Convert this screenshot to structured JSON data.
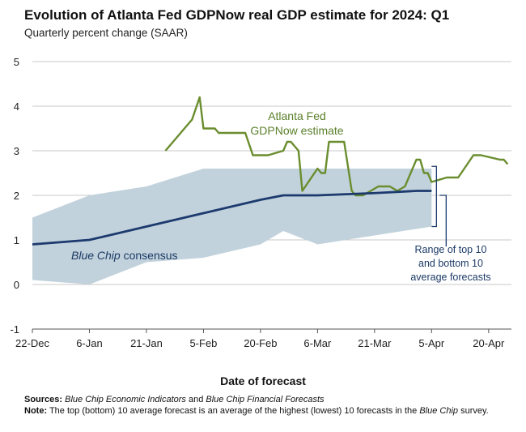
{
  "title": "Evolution of Atlanta Fed GDPNow real GDP estimate for 2024: Q1",
  "subtitle": "Quarterly percent change (SAAR)",
  "xlabel": "Date of forecast",
  "sources": {
    "label": "Sources:",
    "parts": [
      {
        "text": "Blue Chip Economic Indicators",
        "italic": true
      },
      {
        "text": " and ",
        "italic": false
      },
      {
        "text": "Blue Chip Financial Forecasts",
        "italic": true
      }
    ]
  },
  "note": {
    "label": "Note:",
    "parts": [
      {
        "text": " The top (bottom) 10 average forecast is an average of the highest (lowest) 10 forecasts in the ",
        "italic": false
      },
      {
        "text": "Blue Chip",
        "italic": true
      },
      {
        "text": " survey.",
        "italic": false
      }
    ]
  },
  "annotations": {
    "gdpnow": [
      "Atlanta Fed",
      "GDPNow estimate"
    ],
    "bluechip": [
      {
        "text": "Blue Chip",
        "italic": true
      },
      {
        "text": " consensus",
        "italic": false
      }
    ],
    "range": [
      "Range of top 10",
      "and bottom 10",
      "average forecasts"
    ]
  },
  "colors": {
    "gdpnow": "#6a8d2e",
    "bluechip": "#1c3a6e",
    "range_fill": "#c2d2dc",
    "grid": "#c9c9c9",
    "axis": "#555555"
  },
  "chart_data": {
    "type": "line",
    "x_axis": {
      "start": "2023-12-22",
      "end": "2024-04-26",
      "ticks": [
        {
          "date": "2023-12-22",
          "label": "22-Dec"
        },
        {
          "date": "2024-01-06",
          "label": "6-Jan"
        },
        {
          "date": "2024-01-21",
          "label": "21-Jan"
        },
        {
          "date": "2024-02-05",
          "label": "5-Feb"
        },
        {
          "date": "2024-02-20",
          "label": "20-Feb"
        },
        {
          "date": "2024-03-06",
          "label": "6-Mar"
        },
        {
          "date": "2024-03-21",
          "label": "21-Mar"
        },
        {
          "date": "2024-04-05",
          "label": "5-Apr"
        },
        {
          "date": "2024-04-20",
          "label": "20-Apr"
        }
      ]
    },
    "ylim": [
      -1,
      5
    ],
    "yticks": [
      -1,
      0,
      1,
      2,
      3,
      4,
      5
    ],
    "grid": true,
    "series": [
      {
        "name": "Atlanta Fed GDPNow estimate",
        "kind": "line",
        "points": [
          [
            "2024-01-26",
            3.0
          ],
          [
            "2024-01-29",
            3.3
          ],
          [
            "2024-02-01",
            3.6
          ],
          [
            "2024-02-02",
            3.7
          ],
          [
            "2024-02-04",
            4.2
          ],
          [
            "2024-02-05",
            3.5
          ],
          [
            "2024-02-07",
            3.5
          ],
          [
            "2024-02-08",
            3.5
          ],
          [
            "2024-02-09",
            3.4
          ],
          [
            "2024-02-15",
            3.4
          ],
          [
            "2024-02-16",
            3.4
          ],
          [
            "2024-02-18",
            2.9
          ],
          [
            "2024-02-22",
            2.9
          ],
          [
            "2024-02-26",
            3.0
          ],
          [
            "2024-02-27",
            3.2
          ],
          [
            "2024-02-28",
            3.2
          ],
          [
            "2024-03-01",
            3.0
          ],
          [
            "2024-03-02",
            2.1
          ],
          [
            "2024-03-06",
            2.6
          ],
          [
            "2024-03-07",
            2.5
          ],
          [
            "2024-03-08",
            2.5
          ],
          [
            "2024-03-09",
            3.2
          ],
          [
            "2024-03-12",
            3.2
          ],
          [
            "2024-03-13",
            3.2
          ],
          [
            "2024-03-15",
            2.1
          ],
          [
            "2024-03-16",
            2.0
          ],
          [
            "2024-03-18",
            2.0
          ],
          [
            "2024-03-20",
            2.1
          ],
          [
            "2024-03-22",
            2.2
          ],
          [
            "2024-03-25",
            2.2
          ],
          [
            "2024-03-27",
            2.1
          ],
          [
            "2024-03-29",
            2.2
          ],
          [
            "2024-04-01",
            2.8
          ],
          [
            "2024-04-02",
            2.8
          ],
          [
            "2024-04-03",
            2.5
          ],
          [
            "2024-04-04",
            2.5
          ],
          [
            "2024-04-05",
            2.3
          ],
          [
            "2024-04-09",
            2.4
          ],
          [
            "2024-04-12",
            2.4
          ],
          [
            "2024-04-16",
            2.9
          ],
          [
            "2024-04-18",
            2.9
          ],
          [
            "2024-04-23",
            2.8
          ],
          [
            "2024-04-24",
            2.8
          ],
          [
            "2024-04-25",
            2.7
          ]
        ]
      },
      {
        "name": "Blue Chip consensus",
        "kind": "line",
        "points": [
          [
            "2023-12-22",
            0.9
          ],
          [
            "2024-01-06",
            1.0
          ],
          [
            "2024-01-21",
            1.3
          ],
          [
            "2024-02-05",
            1.6
          ],
          [
            "2024-02-20",
            1.9
          ],
          [
            "2024-02-26",
            2.0
          ],
          [
            "2024-03-06",
            2.0
          ],
          [
            "2024-03-21",
            2.05
          ],
          [
            "2024-04-01",
            2.1
          ],
          [
            "2024-04-05",
            2.1
          ]
        ]
      },
      {
        "name": "Range of top 10 and bottom 10 average forecasts",
        "kind": "band",
        "points": [
          [
            "2023-12-22",
            0.1,
            1.5
          ],
          [
            "2024-01-06",
            0.0,
            2.0
          ],
          [
            "2024-01-21",
            0.5,
            2.2
          ],
          [
            "2024-02-05",
            0.6,
            2.6
          ],
          [
            "2024-02-20",
            0.9,
            2.6
          ],
          [
            "2024-02-26",
            1.2,
            2.6
          ],
          [
            "2024-03-06",
            0.9,
            2.6
          ],
          [
            "2024-03-21",
            1.1,
            2.6
          ],
          [
            "2024-04-05",
            1.3,
            2.6
          ]
        ]
      }
    ]
  }
}
